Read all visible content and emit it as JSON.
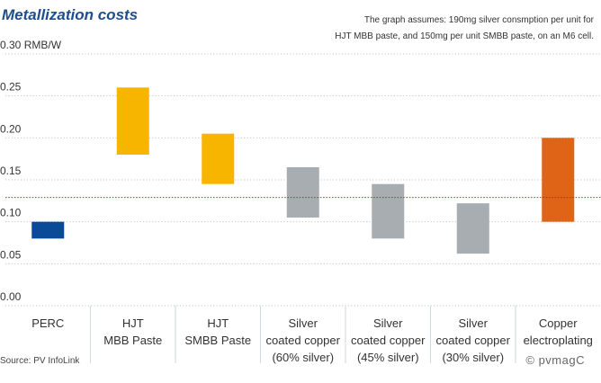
{
  "header": {
    "title": "Metallization costs",
    "note_line1": "The graph assumes: 190mg silver consmption per unit for",
    "note_line2": "HJT MBB paste, and 150mg per unit SMBB paste, on an M6 cell."
  },
  "footer": {
    "source": "Source: PV InfoLink",
    "watermark": "© pvmagC"
  },
  "colors": {
    "perc": "#0b4a96",
    "hjt": "#f7b500",
    "silver": "#a8adb2",
    "copper": "#df6418",
    "reference": "#a3321f",
    "grid": "#bfc6cf"
  },
  "chart_data": {
    "type": "bar",
    "subtype": "floating-range",
    "title": "Metallization costs",
    "ylabel": "",
    "unit": "RMB/W",
    "ylim": [
      0,
      0.3
    ],
    "yticks": [
      "0.00",
      "0.05",
      "0.10",
      "0.15",
      "0.20",
      "0.25",
      "0.30 RMB/W"
    ],
    "reference_line": 0.129,
    "categories": [
      [
        "PERC"
      ],
      [
        "HJT",
        "MBB Paste"
      ],
      [
        "HJT",
        "SMBB Paste"
      ],
      [
        "Silver",
        "coated copper",
        "(60% silver)"
      ],
      [
        "Silver",
        "coated copper",
        "(45% silver)"
      ],
      [
        "Silver",
        "coated copper",
        "(30% silver)"
      ],
      [
        "Copper",
        "electroplating"
      ]
    ],
    "series": [
      {
        "low": [
          0.08,
          0.18,
          0.145,
          0.105,
          0.08,
          0.062,
          0.1
        ],
        "high": [
          0.1,
          0.26,
          0.205,
          0.165,
          0.145,
          0.122,
          0.2
        ]
      }
    ],
    "bar_colors": [
      "#0b4a96",
      "#f7b500",
      "#f7b500",
      "#a8adb2",
      "#a8adb2",
      "#a8adb2",
      "#df6418"
    ]
  }
}
